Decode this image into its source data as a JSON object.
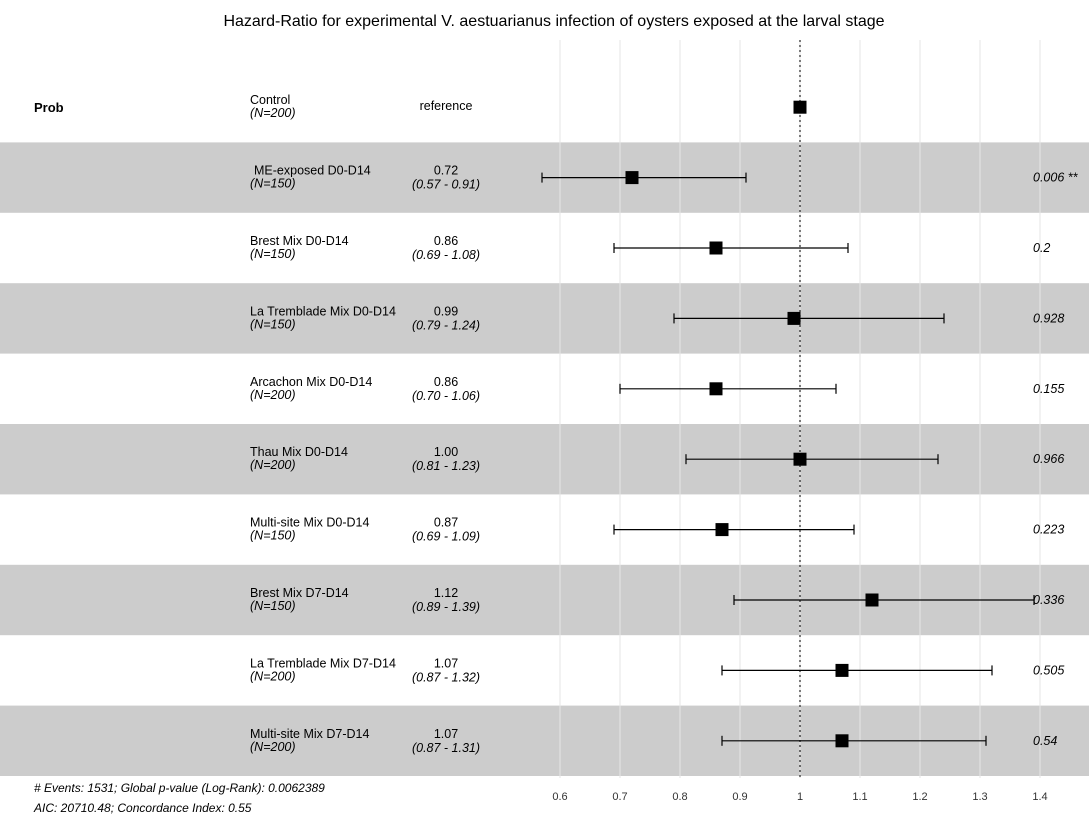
{
  "chart_data": {
    "type": "forest",
    "title": "Hazard-Ratio for experimental V. aestuarianus infection of oysters exposed at the larval stage",
    "variable": "Prob",
    "reference_label": "reference",
    "reference_line": 1,
    "xlim": [
      0.5,
      1.45
    ],
    "xticks": [
      0.6,
      0.7,
      0.8,
      0.9,
      1,
      1.1,
      1.2,
      1.3,
      1.4
    ],
    "xtick_labels": [
      "0.6",
      "0.7",
      "0.8",
      "0.9",
      "1",
      "1.1",
      "1.2",
      "1.3",
      "1.4"
    ],
    "rows": [
      {
        "group": "Control",
        "n": "(N=200)",
        "estimate": 1.0,
        "estimate_label": "reference",
        "ci": "",
        "low": null,
        "high": null,
        "p": "",
        "shaded": false
      },
      {
        "group": "ME-exposed D0-D14",
        "n": "(N=150)",
        "estimate": 0.72,
        "estimate_label": "0.72",
        "ci": "(0.57 - 0.91)",
        "low": 0.57,
        "high": 0.91,
        "p": "0.006 **",
        "shaded": true
      },
      {
        "group": "Brest Mix D0-D14",
        "n": "(N=150)",
        "estimate": 0.86,
        "estimate_label": "0.86",
        "ci": "(0.69 - 1.08)",
        "low": 0.69,
        "high": 1.08,
        "p": "0.2",
        "shaded": false
      },
      {
        "group": "La Tremblade Mix D0-D14",
        "n": "(N=150)",
        "estimate": 0.99,
        "estimate_label": "0.99",
        "ci": "(0.79 - 1.24)",
        "low": 0.79,
        "high": 1.24,
        "p": "0.928",
        "shaded": true
      },
      {
        "group": "Arcachon Mix D0-D14",
        "n": "(N=200)",
        "estimate": 0.86,
        "estimate_label": "0.86",
        "ci": "(0.70 - 1.06)",
        "low": 0.7,
        "high": 1.06,
        "p": "0.155",
        "shaded": false
      },
      {
        "group": "Thau Mix D0-D14",
        "n": "(N=200)",
        "estimate": 1.0,
        "estimate_label": "1.00",
        "ci": "(0.81 - 1.23)",
        "low": 0.81,
        "high": 1.23,
        "p": "0.966",
        "shaded": true
      },
      {
        "group": "Multi-site Mix D0-D14",
        "n": "(N=150)",
        "estimate": 0.87,
        "estimate_label": "0.87",
        "ci": "(0.69 - 1.09)",
        "low": 0.69,
        "high": 1.09,
        "p": "0.223",
        "shaded": false
      },
      {
        "group": "Brest Mix D7-D14",
        "n": "(N=150)",
        "estimate": 1.12,
        "estimate_label": "1.12",
        "ci": "(0.89 - 1.39)",
        "low": 0.89,
        "high": 1.39,
        "p": "0.336",
        "shaded": true
      },
      {
        "group": "La Tremblade Mix D7-D14",
        "n": "(N=200)",
        "estimate": 1.07,
        "estimate_label": "1.07",
        "ci": "(0.87 - 1.32)",
        "low": 0.87,
        "high": 1.32,
        "p": "0.505",
        "shaded": false
      },
      {
        "group": "Multi-site Mix D7-D14",
        "n": "(N=200)",
        "estimate": 1.07,
        "estimate_label": "1.07",
        "ci": "(0.87 - 1.31)",
        "low": 0.87,
        "high": 1.31,
        "p": "0.54",
        "shaded": true
      }
    ],
    "footer": [
      "# Events: 1531; Global p-value (Log-Rank): 0.0062389",
      "AIC: 20710.48; Concordance Index: 0.55"
    ],
    "colors": {
      "shade": "#cccccc",
      "grid": "#e6e6e6",
      "mark": "#000000"
    }
  }
}
